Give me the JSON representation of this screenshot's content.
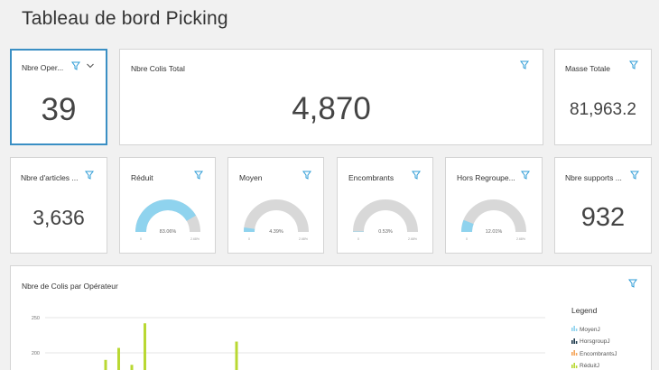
{
  "dashboard": {
    "title": "Tableau de bord Picking"
  },
  "tiles": {
    "operateurs": {
      "label": "Nbre Oper...",
      "value": "39"
    },
    "colis": {
      "label": "Nbre Colis Total",
      "value": "4,870"
    },
    "masse": {
      "label": "Masse Totale",
      "value": "81,963.2"
    },
    "articles": {
      "label": "Nbre d'articles ...",
      "value": "3,636"
    },
    "supports": {
      "label": "Nbre supports ...",
      "value": "932"
    }
  },
  "gauges": [
    {
      "label": "Réduit",
      "value_text": "83.06%",
      "fraction": 0.8306,
      "min_label": "0",
      "max_label": "2.68%"
    },
    {
      "label": "Moyen",
      "value_text": "4.39%",
      "fraction": 0.0439,
      "min_label": "0",
      "max_label": "2.68%"
    },
    {
      "label": "Encombrants",
      "value_text": "0.53%",
      "fraction": 0.0053,
      "min_label": "0",
      "max_label": "2.68%"
    },
    {
      "label": "Hors Regroupe...",
      "value_text": "12.01%",
      "fraction": 0.1201,
      "min_label": "0",
      "max_label": "2.68%"
    }
  ],
  "chart": {
    "title": "Nbre de Colis par Opérateur",
    "legend_title": "Legend",
    "legend": [
      {
        "label": "MoyenJ",
        "color": "#8fd3ee"
      },
      {
        "label": "HorsgroupJ",
        "color": "#1f3a4d"
      },
      {
        "label": "EncombrantsJ",
        "color": "#f5a55a"
      },
      {
        "label": "RéduitJ",
        "color": "#b9d833"
      }
    ]
  },
  "chart_data": {
    "type": "bar",
    "title": "Nbre de Colis par Opérateur",
    "y_ticks": [
      "250",
      "200"
    ],
    "ylim": [
      0,
      275
    ],
    "series": [
      {
        "name": "RéduitJ",
        "color": "#b9d833",
        "points": [
          {
            "x_index": 3,
            "value": 190
          },
          {
            "x_index": 4,
            "value": 207
          },
          {
            "x_index": 5,
            "value": 183
          },
          {
            "x_index": 6,
            "value": 242
          },
          {
            "x_index": 13,
            "value": 216
          }
        ]
      }
    ],
    "grid": true,
    "legend_position": "right"
  },
  "colors": {
    "accent": "#3a8fc4",
    "gauge_fill": "#8fd3ee",
    "gauge_track": "#d8d8d8",
    "filter_icon": "#2b9bd6"
  }
}
